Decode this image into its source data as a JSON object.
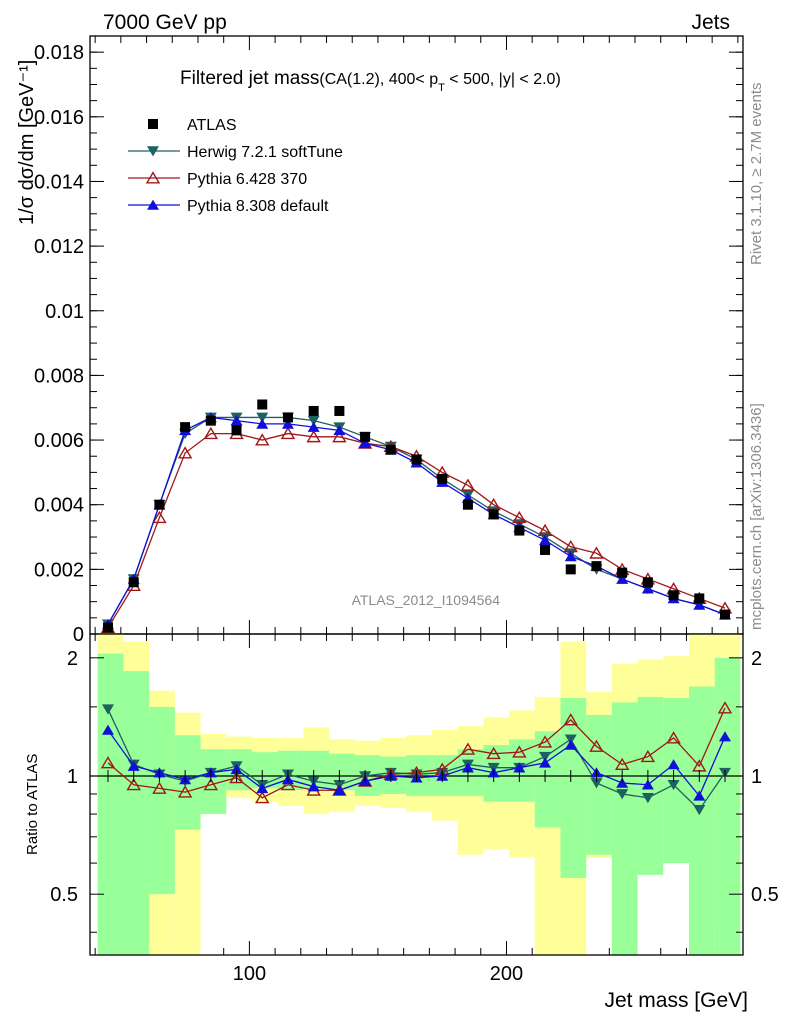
{
  "header": {
    "left": "7000 GeV pp",
    "right": "Jets"
  },
  "side": {
    "rivet": "Rivet 3.1.10, ≥ 2.7M events",
    "mcplots": "mcplots.cern.ch [arXiv:1306.3436]"
  },
  "chart_data": {
    "type": "line",
    "title_main": "Filtered jet mass",
    "title_cut_a": "(CA(1.2), 400< p",
    "title_sub": "T",
    "title_cut_b": " < 500, |y| < 2.0)",
    "watermark": "ATLAS_2012_I1094564",
    "xlabel": "Jet mass [GeV]",
    "ylabel": "1/σ dσ/dm [GeV⁻¹]",
    "ratio_ylabel": "Ratio to ATLAS",
    "xlim": [
      38,
      292
    ],
    "ylim": [
      0,
      0.0185
    ],
    "ratio_ylim": [
      0.35,
      2.3
    ],
    "xticks": [
      {
        "v": 100,
        "label": "100"
      },
      {
        "v": 200,
        "label": "200"
      }
    ],
    "yticks": [
      {
        "v": 0,
        "label": "0"
      },
      {
        "v": 0.002,
        "label": "0.002"
      },
      {
        "v": 0.004,
        "label": "0.004"
      },
      {
        "v": 0.006,
        "label": "0.006"
      },
      {
        "v": 0.008,
        "label": "0.008"
      },
      {
        "v": 0.01,
        "label": "0.01"
      },
      {
        "v": 0.012,
        "label": "0.012"
      },
      {
        "v": 0.014,
        "label": "0.014"
      },
      {
        "v": 0.016,
        "label": "0.016"
      },
      {
        "v": 0.018,
        "label": "0.018"
      }
    ],
    "ratio_yticks": [
      {
        "v": 0.5,
        "label": "0.5"
      },
      {
        "v": 1,
        "label": "1"
      },
      {
        "v": 2,
        "label": "2"
      }
    ],
    "x": [
      45,
      55,
      65,
      75,
      85,
      95,
      105,
      115,
      125,
      135,
      145,
      155,
      165,
      175,
      185,
      195,
      205,
      215,
      225,
      235,
      245,
      255,
      265,
      275,
      285
    ],
    "series": [
      {
        "name": "ATLAS",
        "color": "#000000",
        "marker": "square",
        "values": [
          0.0002,
          0.0016,
          0.004,
          0.0064,
          0.0066,
          0.0063,
          0.0071,
          0.0067,
          0.0069,
          0.0069,
          0.0061,
          0.0057,
          0.0054,
          0.0048,
          0.004,
          0.0037,
          0.0032,
          0.0026,
          0.002,
          0.0021,
          0.0019,
          0.0016,
          0.0012,
          0.0011,
          0.0006
        ],
        "ratio": [
          1,
          1,
          1,
          1,
          1,
          1,
          1,
          1,
          1,
          1,
          1,
          1,
          1,
          1,
          1,
          1,
          1,
          1,
          1,
          1,
          1,
          1,
          1,
          1,
          1
        ]
      },
      {
        "name": "Herwig 7.2.1 softTune",
        "color": "#1f6060",
        "marker": "tri-down",
        "values": [
          0.0003,
          0.0017,
          0.004,
          0.0062,
          0.0067,
          0.0067,
          0.0067,
          0.0067,
          0.0066,
          0.0064,
          0.0061,
          0.0058,
          0.0054,
          0.0048,
          0.0043,
          0.0038,
          0.0034,
          0.003,
          0.0025,
          0.002,
          0.0017,
          0.0014,
          0.0011,
          0.0009,
          0.0006
        ],
        "ratio": [
          1.48,
          1.07,
          1.01,
          0.97,
          1.02,
          1.06,
          0.95,
          1.01,
          0.97,
          0.95,
          1.0,
          1.02,
          1.01,
          1.02,
          1.07,
          1.05,
          1.05,
          1.12,
          1.24,
          0.96,
          0.9,
          0.88,
          0.95,
          0.82,
          1.02
        ]
      },
      {
        "name": "Pythia 6.428 370",
        "color": "#a01818",
        "marker": "tri-up-open",
        "values": [
          0.0002,
          0.0015,
          0.0036,
          0.0056,
          0.0062,
          0.0062,
          0.006,
          0.0062,
          0.0061,
          0.0061,
          0.0059,
          0.0058,
          0.0055,
          0.005,
          0.0046,
          0.004,
          0.0036,
          0.0032,
          0.0027,
          0.0025,
          0.002,
          0.0017,
          0.0014,
          0.0011,
          0.0008
        ],
        "ratio": [
          1.08,
          0.95,
          0.93,
          0.91,
          0.95,
          0.99,
          0.88,
          0.95,
          0.92,
          0.92,
          0.97,
          1.01,
          1.02,
          1.04,
          1.17,
          1.14,
          1.15,
          1.22,
          1.39,
          1.19,
          1.07,
          1.12,
          1.25,
          1.06,
          1.49
        ]
      },
      {
        "name": "Pythia 8.308 default",
        "color": "#1010d8",
        "marker": "tri-up",
        "values": [
          0.0003,
          0.0017,
          0.004,
          0.0063,
          0.0067,
          0.0066,
          0.0065,
          0.0065,
          0.0064,
          0.0063,
          0.0059,
          0.0057,
          0.0053,
          0.0047,
          0.0042,
          0.0037,
          0.0033,
          0.0029,
          0.0024,
          0.0021,
          0.0017,
          0.0014,
          0.0011,
          0.0009,
          0.0006
        ],
        "ratio": [
          1.31,
          1.06,
          1.02,
          0.98,
          1.02,
          1.04,
          0.93,
          0.98,
          0.94,
          0.92,
          0.97,
          1.0,
          0.99,
          1.0,
          1.05,
          1.02,
          1.05,
          1.08,
          1.2,
          1.02,
          0.96,
          0.95,
          1.07,
          0.89,
          1.26
        ]
      }
    ],
    "bands": {
      "edges": [
        41,
        51,
        61,
        71,
        81,
        91,
        101,
        111,
        121,
        131,
        141,
        151,
        161,
        171,
        181,
        191,
        201,
        211,
        221,
        231,
        241,
        251,
        261,
        271,
        281,
        291
      ],
      "yellow": [
        [
          0.35,
          2.3
        ],
        [
          0.35,
          2.2
        ],
        [
          0.35,
          1.65
        ],
        [
          0.35,
          1.45
        ],
        [
          0.86,
          1.28
        ],
        [
          0.88,
          1.26
        ],
        [
          0.86,
          1.25
        ],
        [
          0.84,
          1.25
        ],
        [
          0.8,
          1.33
        ],
        [
          0.81,
          1.24
        ],
        [
          0.84,
          1.23
        ],
        [
          0.83,
          1.25
        ],
        [
          0.81,
          1.27
        ],
        [
          0.77,
          1.31
        ],
        [
          0.63,
          1.34
        ],
        [
          0.65,
          1.41
        ],
        [
          0.62,
          1.47
        ],
        [
          0.35,
          1.59
        ],
        [
          0.35,
          2.2
        ],
        [
          0.62,
          1.64
        ],
        [
          0.71,
          1.93
        ],
        [
          0.69,
          1.98
        ],
        [
          0.65,
          2.02
        ],
        [
          0.36,
          2.3
        ],
        [
          0.42,
          2.3
        ]
      ],
      "green": [
        [
          0.35,
          2.05
        ],
        [
          0.35,
          1.85
        ],
        [
          0.5,
          1.5
        ],
        [
          0.73,
          1.27
        ],
        [
          0.8,
          1.17
        ],
        [
          0.92,
          1.17
        ],
        [
          0.93,
          1.15
        ],
        [
          0.92,
          1.16
        ],
        [
          0.93,
          1.16
        ],
        [
          0.92,
          1.14
        ],
        [
          0.89,
          1.13
        ],
        [
          0.9,
          1.12
        ],
        [
          0.89,
          1.13
        ],
        [
          0.89,
          1.13
        ],
        [
          0.89,
          1.17
        ],
        [
          0.86,
          1.2
        ],
        [
          0.86,
          1.24
        ],
        [
          0.74,
          1.3
        ],
        [
          0.55,
          1.58
        ],
        [
          0.63,
          1.43
        ],
        [
          0.35,
          1.54
        ],
        [
          0.56,
          1.59
        ],
        [
          0.6,
          1.58
        ],
        [
          0.35,
          1.69
        ],
        [
          0.35,
          2.0
        ]
      ]
    },
    "legend": "top-left",
    "watermark_position": "bottom-right"
  }
}
